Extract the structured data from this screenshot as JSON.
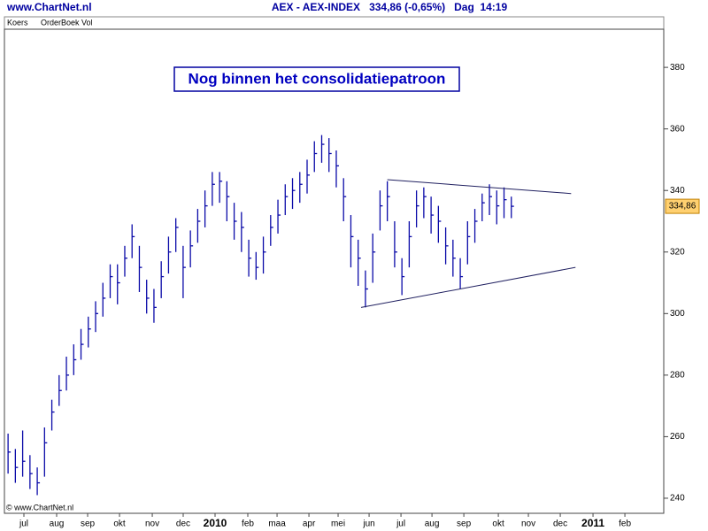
{
  "header": {
    "site": "www.ChartNet.nl",
    "title": "AEX - AEX-INDEX   334,86 (-0,65%)   Dag  14:19"
  },
  "tabs": [
    "Koers",
    "OrderBoek Vol"
  ],
  "footer": "© www.ChartNet.nl",
  "chart_data": {
    "type": "ohlc",
    "annotation": "Nog binnen het consolidatiepatroon",
    "color": "#0a0aa8",
    "x": [
      0.5,
      1.5,
      2.5,
      3.5,
      4.5,
      5.5,
      6.5,
      7.5,
      8.5,
      9.5,
      10.5,
      11.5,
      12.5,
      13.5,
      14.5,
      15.5,
      16.5,
      17.5,
      18.5,
      19.5,
      20.5,
      21.5,
      22.5,
      23.5,
      24.5,
      25.5,
      26.5,
      27.5,
      28.5,
      29.5,
      30.5,
      31.5,
      32.5,
      33.5,
      34.5,
      35.5,
      36.5,
      37.5,
      38.5,
      39.5,
      40.5,
      41.5,
      42.5,
      43.5,
      44.5,
      45.5,
      46.5,
      47.5,
      48.5,
      49.5,
      50.5,
      51.5,
      52.5,
      53.5,
      54.5,
      55.5,
      56.5,
      57.5,
      58.5,
      59.5,
      60.5,
      61.5,
      62.5,
      63.5,
      64.5,
      65.5,
      66.5,
      67.5,
      68.5,
      69.5
    ],
    "high": [
      261,
      256,
      262,
      254,
      250,
      263,
      272,
      280,
      286,
      290,
      295,
      299,
      304,
      310,
      316,
      316,
      322,
      329,
      322,
      311,
      308,
      317,
      325,
      331,
      322,
      327,
      334,
      340,
      346,
      346,
      343,
      336,
      333,
      324,
      320,
      325,
      332,
      337,
      342,
      344,
      346,
      350,
      356,
      358,
      357,
      353,
      344,
      332,
      324,
      314,
      326,
      340,
      343,
      330,
      318,
      330,
      340,
      341,
      338,
      335,
      328,
      324,
      318,
      330,
      334,
      339,
      342,
      340,
      341,
      338
    ],
    "low": [
      248,
      245,
      247,
      243,
      241,
      247,
      262,
      270,
      275,
      280,
      285,
      289,
      294,
      299,
      305,
      303,
      312,
      318,
      307,
      300,
      297,
      305,
      313,
      320,
      305,
      315,
      323,
      328,
      335,
      336,
      330,
      324,
      320,
      312,
      311,
      313,
      322,
      326,
      332,
      334,
      336,
      339,
      346,
      349,
      346,
      341,
      330,
      315,
      309,
      302,
      310,
      327,
      330,
      315,
      306,
      315,
      328,
      331,
      326,
      323,
      316,
      312,
      308,
      316,
      323,
      330,
      332,
      329,
      331,
      331
    ],
    "close": [
      255,
      250,
      252,
      248,
      245,
      258,
      268,
      275,
      280,
      285,
      290,
      295,
      300,
      305,
      312,
      310,
      318,
      325,
      315,
      305,
      302,
      312,
      320,
      328,
      315,
      322,
      330,
      335,
      342,
      343,
      338,
      330,
      328,
      318,
      315,
      320,
      328,
      332,
      338,
      340,
      342,
      345,
      352,
      355,
      352,
      348,
      338,
      325,
      318,
      308,
      320,
      335,
      338,
      320,
      312,
      325,
      335,
      338,
      332,
      330,
      322,
      318,
      312,
      325,
      330,
      336,
      338,
      335,
      337,
      334.86
    ],
    "last_price": {
      "value": 334.86,
      "label": "334,86"
    },
    "trendlines": [
      {
        "x": [
          52.5,
          77.7
        ],
        "y": [
          343.5,
          339
        ]
      },
      {
        "x": [
          48.9,
          78.3
        ],
        "y": [
          302,
          315
        ]
      }
    ],
    "xlim": [
      0,
      90.4
    ],
    "xticks": [
      {
        "value": 2.67,
        "label": "jul"
      },
      {
        "value": 7.16,
        "label": "aug"
      },
      {
        "value": 11.41,
        "label": "sep"
      },
      {
        "value": 15.78,
        "label": "okt"
      },
      {
        "value": 20.27,
        "label": "nov"
      },
      {
        "value": 24.51,
        "label": "dec"
      },
      {
        "value": 28.88,
        "label": "2010",
        "bold": true
      },
      {
        "value": 33.37,
        "label": "feb"
      },
      {
        "value": 37.38,
        "label": "maa"
      },
      {
        "value": 41.75,
        "label": "apr"
      },
      {
        "value": 45.75,
        "label": "mei"
      },
      {
        "value": 50.0,
        "label": "jun"
      },
      {
        "value": 54.37,
        "label": "jul"
      },
      {
        "value": 58.62,
        "label": "aug"
      },
      {
        "value": 62.99,
        "label": "sep"
      },
      {
        "value": 67.72,
        "label": "okt"
      },
      {
        "value": 71.84,
        "label": "nov"
      },
      {
        "value": 76.21,
        "label": "dec"
      },
      {
        "value": 80.7,
        "label": "2011",
        "bold": true
      },
      {
        "value": 85.07,
        "label": "feb"
      }
    ],
    "ylim": [
      235.1,
      392.4
    ],
    "yticks": [
      240,
      260,
      280,
      300,
      320,
      340,
      360,
      380
    ]
  }
}
